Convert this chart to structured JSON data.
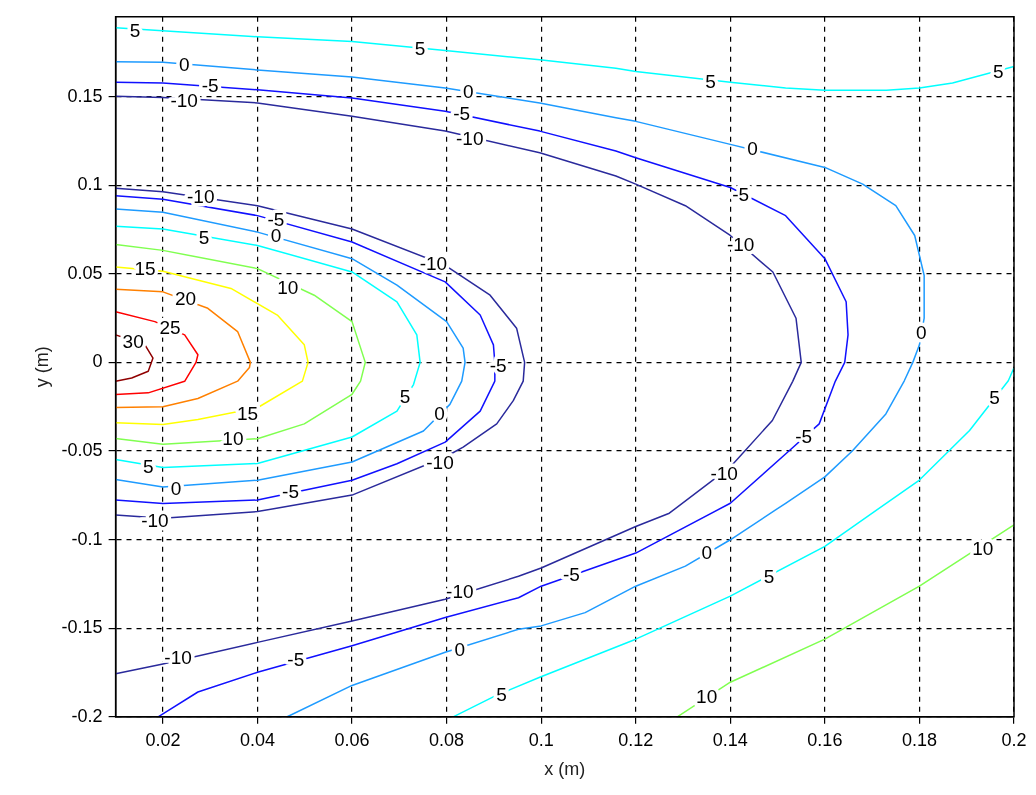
{
  "chart_data": {
    "type": "line",
    "xlabel": "x (m)",
    "ylabel": "y (m)",
    "xlim": [
      0.01,
      0.2
    ],
    "ylim": [
      -0.2,
      0.195
    ],
    "xticks": [
      0.02,
      0.04,
      0.06,
      0.08,
      0.1,
      0.12,
      0.14,
      0.16,
      0.18,
      0.2
    ],
    "yticks": [
      -0.2,
      -0.15,
      -0.1,
      -0.05,
      0,
      0.05,
      0.1,
      0.15
    ],
    "grid": true,
    "marker": "none",
    "line_style": "solid",
    "series": [
      {
        "color": "#00ffff",
        "x": [
          0.01,
          0.04,
          0.06,
          0.0797,
          0.0997,
          0.1158,
          0.12,
          0.14,
          0.1517,
          0.16,
          0.173,
          0.18,
          0.187,
          0.2
        ],
        "values": [
          0.1888,
          0.1837,
          0.181,
          0.176,
          0.1707,
          0.166,
          0.1641,
          0.158,
          0.1548,
          0.1535,
          0.1535,
          0.1548,
          0.1576,
          0.167
        ]
      },
      {
        "color": "#1e9bff",
        "x": [
          0.01,
          0.02,
          0.04,
          0.06,
          0.0797,
          0.0997,
          0.1158,
          0.12,
          0.14,
          0.16,
          0.168,
          0.175,
          0.179,
          0.181,
          0.181,
          0.18,
          0.1786,
          0.1768,
          0.1729,
          0.1658,
          0.16,
          0.1517,
          0.14,
          0.1305,
          0.12,
          0.1093,
          0.1,
          0.0952,
          0.0797,
          0.06,
          0.0463
        ],
        "values": [
          0.1697,
          0.1693,
          0.165,
          0.161,
          0.1548,
          0.1464,
          0.138,
          0.136,
          0.123,
          0.11,
          0.1006,
          0.0884,
          0.0716,
          0.049,
          0.0249,
          0.0099,
          0,
          -0.0104,
          -0.0291,
          -0.05,
          -0.0646,
          -0.0795,
          -0.1001,
          -0.115,
          -0.1263,
          -0.1412,
          -0.1487,
          -0.1506,
          -0.1636,
          -0.1823,
          -0.2
        ]
      },
      {
        "color": "#1010ff",
        "x": [
          0.01,
          0.02,
          0.04,
          0.06,
          0.0797,
          0.0997,
          0.1158,
          0.12,
          0.14,
          0.1517,
          0.16,
          0.1645,
          0.1649,
          0.1642,
          0.1622,
          0.1588,
          0.1524,
          0.14,
          0.12,
          0.1,
          0.0952,
          0.0797,
          0.06,
          0.04,
          0.0274,
          0.019
        ],
        "values": [
          0.1581,
          0.1576,
          0.1538,
          0.1492,
          0.1417,
          0.1305,
          0.1193,
          0.1155,
          0.0987,
          0.0828,
          0.0585,
          0.0342,
          0.0155,
          0,
          -0.0107,
          -0.0347,
          -0.05,
          -0.0795,
          -0.1076,
          -0.1263,
          -0.1328,
          -0.144,
          -0.1599,
          -0.1749,
          -0.186,
          -0.2
        ]
      },
      {
        "color": "#2a2a9c",
        "x": [
          0.01,
          0.02,
          0.04,
          0.06,
          0.0797,
          0.0997,
          0.1158,
          0.12,
          0.1305,
          0.14,
          0.149,
          0.1539,
          0.155,
          0.1532,
          0.1489,
          0.14,
          0.1271,
          0.12,
          0.1,
          0.0952,
          0.0797,
          0.06,
          0.04,
          0.02,
          0.01
        ],
        "values": [
          0.1501,
          0.1495,
          0.1464,
          0.1389,
          0.1305,
          0.1183,
          0.1052,
          0.1006,
          0.0884,
          0.0716,
          0.051,
          0.0249,
          0,
          -0.0107,
          -0.0328,
          -0.059,
          -0.0851,
          -0.0926,
          -0.116,
          -0.1207,
          -0.1337,
          -0.1459,
          -0.158,
          -0.1702,
          -0.1757
        ]
      },
      {
        "color": "#2a2a9c",
        "x": [
          0.01,
          0.02,
          0.04,
          0.06,
          0.0797,
          0.0892,
          0.0948,
          0.0965,
          0.0962,
          0.0941,
          0.0906,
          0.0835,
          0.0797,
          0.06,
          0.04,
          0.02,
          0.01
        ],
        "values": [
          0.0983,
          0.0963,
          0.0884,
          0.0753,
          0.0548,
          0.0379,
          0.0193,
          0,
          -0.0106,
          -0.0216,
          -0.0347,
          -0.0478,
          -0.0534,
          -0.0749,
          -0.0842,
          -0.088,
          -0.0861
        ]
      },
      {
        "color": "#1010ff",
        "x": [
          0.01,
          0.02,
          0.04,
          0.06,
          0.0797,
          0.0871,
          0.0899,
          0.0902,
          0.0902,
          0.0871,
          0.0797,
          0.0695,
          0.06,
          0.04,
          0.02,
          0.01
        ],
        "values": [
          0.094,
          0.0921,
          0.0828,
          0.0679,
          0.0454,
          0.0267,
          0.0099,
          0,
          -0.0106,
          -0.0275,
          -0.045,
          -0.0572,
          -0.0665,
          -0.0777,
          -0.0796,
          -0.0777
        ]
      },
      {
        "color": "#1e9bff",
        "x": [
          0.01,
          0.02,
          0.04,
          0.06,
          0.0695,
          0.08,
          0.0835,
          0.0839,
          0.0832,
          0.0807,
          0.0751,
          0.06,
          0.04,
          0.02,
          0.01
        ],
        "values": [
          0.0865,
          0.0847,
          0.0735,
          0.0585,
          0.0436,
          0.023,
          0.008,
          0,
          -0.0106,
          -0.0237,
          -0.0387,
          -0.0562,
          -0.0665,
          -0.0703,
          -0.0661
        ]
      },
      {
        "color": "#00ffff",
        "x": [
          0.01,
          0.02,
          0.04,
          0.06,
          0.0695,
          0.0737,
          0.0744,
          0.073,
          0.0695,
          0.06,
          0.04,
          0.02,
          0.01
        ],
        "values": [
          0.0768,
          0.0753,
          0.066,
          0.051,
          0.0342,
          0.0155,
          0,
          -0.0125,
          -0.0275,
          -0.0421,
          -0.0571,
          -0.0593,
          -0.0548
        ]
      },
      {
        "color": "#80ff50",
        "x": [
          0.01,
          0.02,
          0.04,
          0.052,
          0.06,
          0.0628,
          0.0618,
          0.06,
          0.0499,
          0.04,
          0.02,
          0.01
        ],
        "values": [
          0.0665,
          0.0632,
          0.0529,
          0.0379,
          0.023,
          0,
          -0.0106,
          -0.018,
          -0.0347,
          -0.0431,
          -0.0462,
          -0.043
        ]
      },
      {
        "color": "#ffff00",
        "x": [
          0.01,
          0.02,
          0.0344,
          0.0442,
          0.0499,
          0.0507,
          0.0495,
          0.04,
          0.0274,
          0.02,
          0.01
        ],
        "values": [
          0.0538,
          0.0514,
          0.0417,
          0.0267,
          0.0099,
          0,
          -0.0106,
          -0.0256,
          -0.0322,
          -0.035,
          -0.0341
        ]
      },
      {
        "color": "#ff8000",
        "x": [
          0.01,
          0.02,
          0.0295,
          0.0358,
          0.0385,
          0.0383,
          0.0358,
          0.0274,
          0.02,
          0.01
        ],
        "values": [
          0.0413,
          0.0398,
          0.0305,
          0.0174,
          0,
          -0.0029,
          -0.0106,
          -0.0204,
          -0.0251,
          -0.0254
        ]
      },
      {
        "color": "#ff0000",
        "x": [
          0.01,
          0.0183,
          0.0246,
          0.0274,
          0.027,
          0.0246,
          0.0169,
          0.01
        ],
        "values": [
          0.0286,
          0.023,
          0.0155,
          0.0043,
          0,
          -0.0107,
          -0.0172,
          -0.0181
        ]
      },
      {
        "color": "#900000",
        "x": [
          0.01,
          0.0162,
          0.0179,
          0.0169,
          0.0134,
          0.01
        ],
        "values": [
          0.0155,
          0.0099,
          0.0024,
          -0.005,
          -0.0088,
          -0.0107
        ]
      },
      {
        "color": "#00ffff",
        "x": [
          0.0814,
          0.0905,
          0.0997,
          0.12,
          0.14,
          0.16,
          0.18,
          0.1906,
          0.1988,
          0.2
        ],
        "values": [
          -0.2,
          -0.1879,
          -0.1777,
          -0.1562,
          -0.1319,
          -0.1038,
          -0.0664,
          -0.0384,
          -0.0104,
          -0.003
        ]
      },
      {
        "color": "#80ff50",
        "x": [
          0.1288,
          0.14,
          0.16,
          0.18,
          0.2
        ],
        "values": [
          -0.2,
          -0.1805,
          -0.1562,
          -0.1263,
          -0.0917
        ]
      }
    ],
    "annotations": [
      {
        "text": "5",
        "x": 0.0141,
        "y": 0.1865
      },
      {
        "text": "5",
        "x": 0.0744,
        "y": 0.1763
      },
      {
        "text": "0",
        "x": 0.0245,
        "y": 0.1673
      },
      {
        "text": "-5",
        "x": 0.03,
        "y": 0.1557
      },
      {
        "text": "-10",
        "x": 0.0245,
        "y": 0.1473
      },
      {
        "text": "0",
        "x": 0.0846,
        "y": 0.152
      },
      {
        "text": "-5",
        "x": 0.0832,
        "y": 0.1397
      },
      {
        "text": "-10",
        "x": 0.0849,
        "y": 0.1258
      },
      {
        "text": "-10",
        "x": 0.028,
        "y": 0.0931
      },
      {
        "text": "-5",
        "x": 0.0439,
        "y": 0.08
      },
      {
        "text": "0",
        "x": 0.0439,
        "y": 0.0707
      },
      {
        "text": "5",
        "x": 0.0287,
        "y": 0.0697
      },
      {
        "text": "-10",
        "x": 0.0772,
        "y": 0.0548
      },
      {
        "text": "15",
        "x": 0.0162,
        "y": 0.052
      },
      {
        "text": "10",
        "x": 0.0464,
        "y": 0.0417
      },
      {
        "text": "20",
        "x": 0.0248,
        "y": 0.0351
      },
      {
        "text": "25",
        "x": 0.0215,
        "y": 0.0192
      },
      {
        "text": "30",
        "x": 0.0137,
        "y": 0.0108
      },
      {
        "text": "-5",
        "x": 0.0909,
        "y": -0.0022
      },
      {
        "text": "5",
        "x": 0.0712,
        "y": -0.02
      },
      {
        "text": "5",
        "x": 0.1358,
        "y": 0.1576
      },
      {
        "text": "5",
        "x": 0.1967,
        "y": 0.1632
      },
      {
        "text": "0",
        "x": 0.1447,
        "y": 0.1202
      },
      {
        "text": "-5",
        "x": 0.1422,
        "y": 0.094
      },
      {
        "text": "-10",
        "x": 0.1422,
        "y": 0.066
      },
      {
        "text": "0",
        "x": 0.1804,
        "y": 0.0164
      },
      {
        "text": "0",
        "x": 0.0785,
        "y": -0.0296
      },
      {
        "text": "15",
        "x": 0.0379,
        "y": -0.0293
      },
      {
        "text": "10",
        "x": 0.0348,
        "y": -0.0439
      },
      {
        "text": "5",
        "x": 0.0169,
        "y": -0.0593
      },
      {
        "text": "0",
        "x": 0.0228,
        "y": -0.0721
      },
      {
        "text": "-5",
        "x": 0.047,
        "y": -0.0738
      },
      {
        "text": "-10",
        "x": 0.0183,
        "y": -0.0897
      },
      {
        "text": "-10",
        "x": 0.0786,
        "y": -0.0571
      },
      {
        "text": "-10",
        "x": 0.0828,
        "y": -0.13
      },
      {
        "text": "-5",
        "x": 0.1064,
        "y": -0.1203
      },
      {
        "text": "-10",
        "x": 0.0232,
        "y": -0.1674
      },
      {
        "text": "-5",
        "x": 0.0481,
        "y": -0.1683
      },
      {
        "text": "0",
        "x": 0.0828,
        "y": -0.1627
      },
      {
        "text": "5",
        "x": 0.0916,
        "y": -0.1879
      },
      {
        "text": "-5",
        "x": 0.1555,
        "y": -0.0426
      },
      {
        "text": "-10",
        "x": 0.1387,
        "y": -0.0636
      },
      {
        "text": "5",
        "x": 0.1959,
        "y": -0.0206
      },
      {
        "text": "0",
        "x": 0.135,
        "y": -0.108
      },
      {
        "text": "5",
        "x": 0.1482,
        "y": -0.1216
      },
      {
        "text": "10",
        "x": 0.1934,
        "y": -0.1057
      },
      {
        "text": "10",
        "x": 0.135,
        "y": -0.1892
      }
    ]
  }
}
